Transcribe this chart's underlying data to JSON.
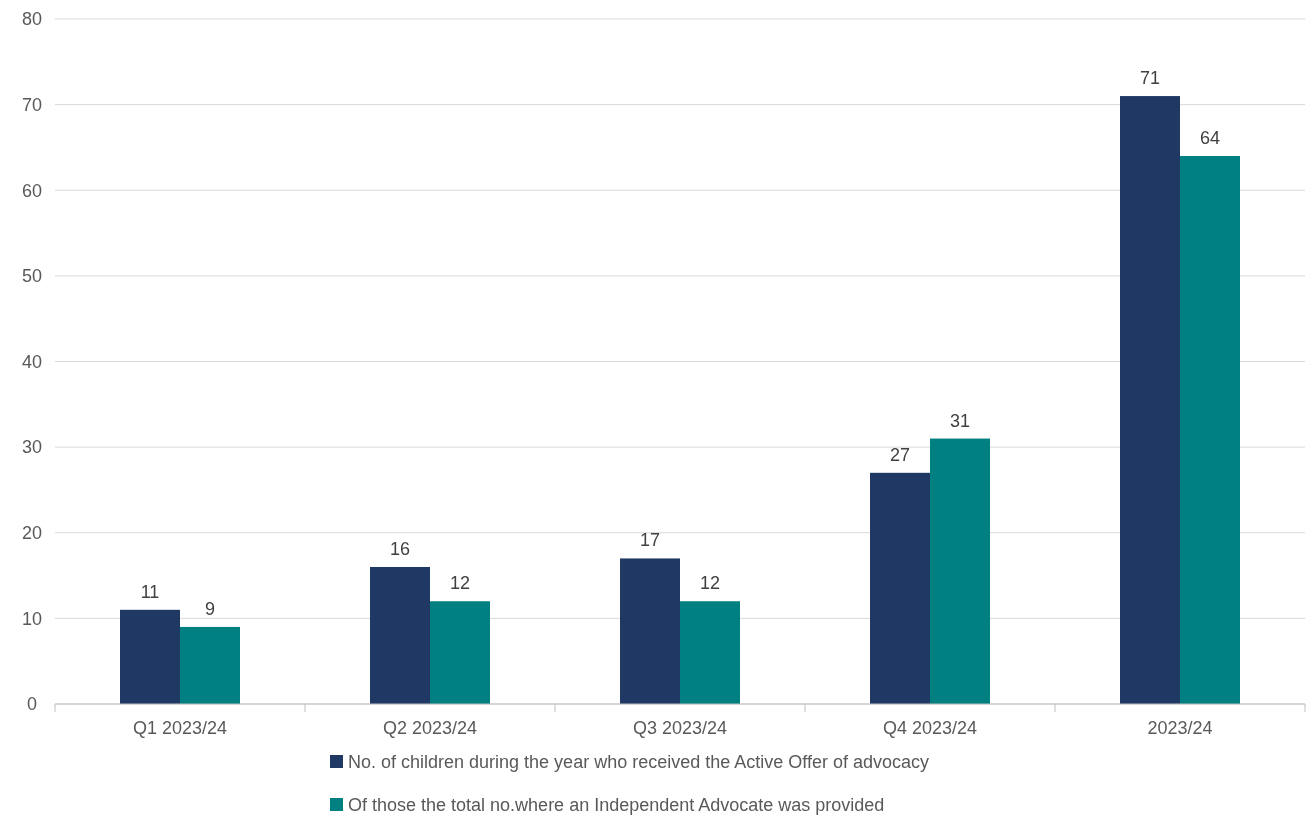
{
  "chart_data": {
    "type": "bar",
    "categories": [
      "Q1 2023/24",
      "Q2 2023/24",
      "Q3 2023/24",
      "Q4 2023/24",
      "2023/24"
    ],
    "series": [
      {
        "name": "No. of children during the year who received the Active Offer of advocacy",
        "color": "#203864",
        "values": [
          11,
          16,
          17,
          27,
          71
        ]
      },
      {
        "name": "Of those the total no.where an Independent Advocate was provided",
        "color": "#008080",
        "values": [
          9,
          12,
          12,
          31,
          64
        ]
      }
    ],
    "ylim": [
      0,
      80
    ],
    "yticks": [
      0,
      10,
      20,
      30,
      40,
      50,
      60,
      70,
      80
    ],
    "grid": "y",
    "legend": "bottom",
    "data_labels": true
  }
}
